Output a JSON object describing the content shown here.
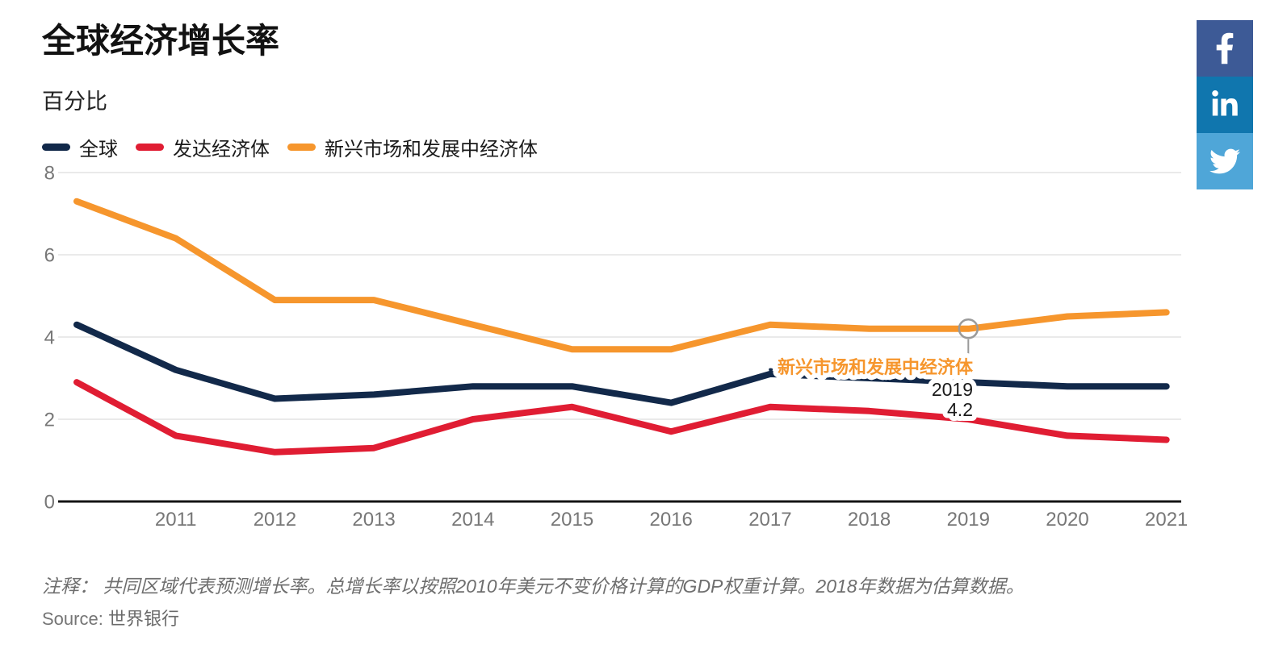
{
  "header": {
    "title": "全球经济增长率",
    "subtitle": "百分比"
  },
  "legend": [
    {
      "label": "全球",
      "color": "#12294a"
    },
    {
      "label": "发达经济体",
      "color": "#e01d33"
    },
    {
      "label": "新兴市场和发展中经济体",
      "color": "#f6962d"
    }
  ],
  "tooltip": {
    "series_label": "新兴市场和发展中经济体",
    "year": "2019",
    "value": "4.2",
    "label_color": "#f6962d",
    "text_color": "#1a1a1a",
    "marker_color": "#9a9a9a"
  },
  "footer": {
    "note": "注释： 共同区域代表预测增长率。总增长率以按照2010年美元不变价格计算的GDP权重计算。2018年数据为估算数据。",
    "source_label": "Source:",
    "source": "世界银行"
  },
  "social": [
    {
      "name": "facebook",
      "color": "#3d5a96"
    },
    {
      "name": "linkedin",
      "color": "#1076ae"
    },
    {
      "name": "twitter",
      "color": "#4fa6d8"
    }
  ],
  "chart_data": {
    "type": "line",
    "x": [
      2010,
      2011,
      2012,
      2013,
      2014,
      2015,
      2016,
      2017,
      2018,
      2019,
      2020,
      2021
    ],
    "xticklabels": [
      "2011",
      "2012",
      "2013",
      "2014",
      "2015",
      "2016",
      "2017",
      "2018",
      "2019",
      "2020",
      "2021"
    ],
    "series": [
      {
        "name": "全球",
        "color": "#12294a",
        "values": [
          4.3,
          3.2,
          2.5,
          2.6,
          2.8,
          2.8,
          2.4,
          3.1,
          3.0,
          2.9,
          2.8,
          2.8
        ]
      },
      {
        "name": "发达经济体",
        "color": "#e01d33",
        "values": [
          2.9,
          1.6,
          1.2,
          1.3,
          2.0,
          2.3,
          1.7,
          2.3,
          2.2,
          2.0,
          1.6,
          1.5
        ]
      },
      {
        "name": "新兴市场和发展中经济体",
        "color": "#f6962d",
        "values": [
          7.3,
          6.4,
          4.9,
          4.9,
          4.3,
          3.7,
          3.7,
          4.3,
          4.2,
          4.2,
          4.5,
          4.6
        ]
      }
    ],
    "title": "全球经济增长率",
    "ylabel": "百分比",
    "ylim": [
      0,
      8
    ],
    "yticks": [
      0,
      2,
      4,
      6,
      8
    ],
    "grid": true,
    "legend_position": "top-left",
    "annotation": {
      "series_index": 2,
      "year": 2019,
      "value": 4.2
    },
    "forecast_dotted": {
      "series_index": 0,
      "from_year": 2017,
      "to_year": 2019
    },
    "colors": {
      "grid": "#e3e3e3",
      "axis": "#141414",
      "tick_label": "#777777"
    }
  }
}
